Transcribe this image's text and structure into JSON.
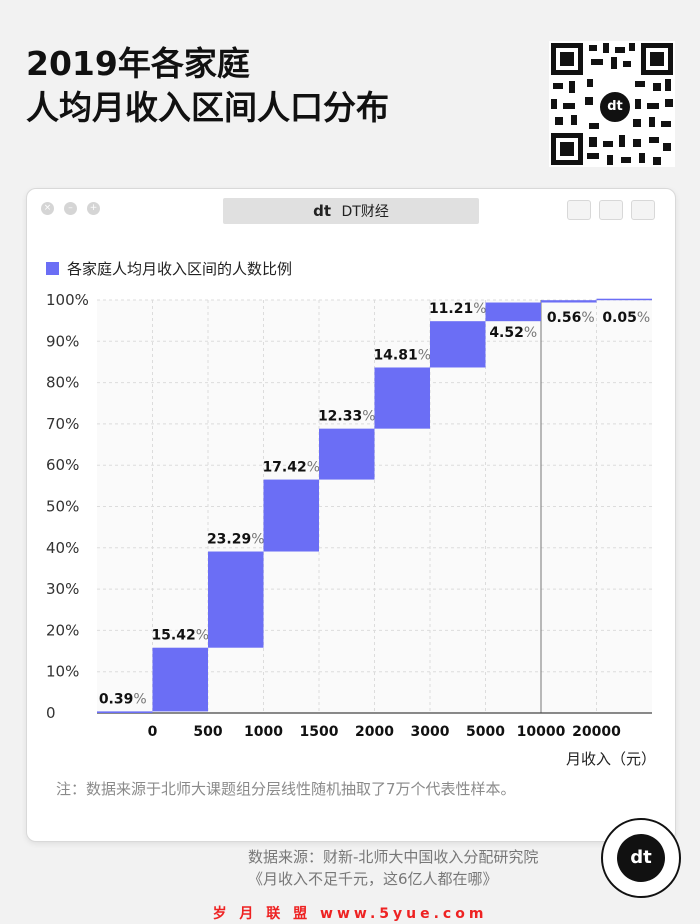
{
  "header": {
    "title_line1": "2019年各家庭",
    "title_line2": "人均月收入区间人口分布"
  },
  "window": {
    "tab_label": "DT财经",
    "logo_text": "dt"
  },
  "chart_data": {
    "type": "bar",
    "subtype": "waterfall",
    "legend": [
      "各家庭人均月收入区间的人数比例"
    ],
    "series": [
      {
        "name": "各家庭人均月收入区间的人数比例",
        "values": [
          0.39,
          15.42,
          23.29,
          17.42,
          12.33,
          14.81,
          11.21,
          4.52,
          0.56,
          0.05
        ],
        "labels": [
          "0.39%",
          "15.42%",
          "23.29%",
          "17.42%",
          "12.33%",
          "14.81%",
          "11.21%",
          "4.52%",
          "0.56%",
          "0.05%"
        ]
      }
    ],
    "x_ticks": [
      "0",
      "500",
      "1000",
      "1500",
      "2000",
      "3000",
      "5000",
      "10000",
      "20000"
    ],
    "y_ticks": [
      "0",
      "10%",
      "20%",
      "30%",
      "40%",
      "50%",
      "60%",
      "70%",
      "80%",
      "90%",
      "100%"
    ],
    "xlabel": "月收入（元）",
    "ylim": [
      0,
      100
    ],
    "grid": true,
    "legend_position": "top-left",
    "bar_color": "#6b6ef5"
  },
  "note": "注：数据来源于北师大课题组分层线性随机抽取了7万个代表性样本。",
  "source": {
    "line1": "数据来源：财新-北师大中国收入分配研究院",
    "line2": "《月收入不足千元，这6亿人都在哪》"
  },
  "badge_text": "dt",
  "footer": "岁 月 联 盟 www.5yue.com"
}
